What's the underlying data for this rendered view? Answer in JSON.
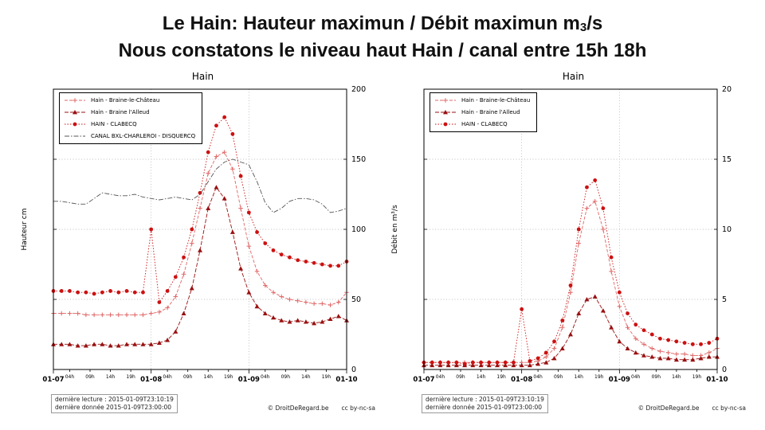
{
  "header": {
    "title_main": "Le Hain: Hauteur maximun  / Débit maximun m",
    "title_sub": "3",
    "title_end": "/s",
    "subtitle": "Nous constatons le niveau haut Hain / canal entre 15h 18h"
  },
  "footer": {
    "lecture": "dernière lecture : 2015-01-09T23:10:19",
    "donnee": "dernière donnée  2015-01-09T23:00:00",
    "copyright": "© DroitDeRegard.be",
    "license": "cc by-nc-sa"
  },
  "chart_data": [
    {
      "type": "line",
      "title": "Hain",
      "ylabel": "Hauteur cm",
      "ylim": [
        0,
        200
      ],
      "yticks": [
        0,
        50,
        100,
        150,
        200
      ],
      "xlim": [
        0,
        72
      ],
      "xticks": [
        {
          "pos": 0,
          "label": "01-07",
          "major": true
        },
        {
          "pos": 4,
          "label": "04h"
        },
        {
          "pos": 9,
          "label": "09h"
        },
        {
          "pos": 14,
          "label": "14h"
        },
        {
          "pos": 19,
          "label": "19h"
        },
        {
          "pos": 24,
          "label": "01-08",
          "major": true
        },
        {
          "pos": 28,
          "label": "04h"
        },
        {
          "pos": 33,
          "label": "09h"
        },
        {
          "pos": 38,
          "label": "14h"
        },
        {
          "pos": 43,
          "label": "19h"
        },
        {
          "pos": 48,
          "label": "01-09",
          "major": true
        },
        {
          "pos": 52,
          "label": "04h"
        },
        {
          "pos": 57,
          "label": "09h"
        },
        {
          "pos": 62,
          "label": "14h"
        },
        {
          "pos": 67,
          "label": "19h"
        },
        {
          "pos": 72,
          "label": "01-10",
          "major": true
        }
      ],
      "x": [
        0,
        2,
        4,
        6,
        8,
        10,
        12,
        14,
        16,
        18,
        20,
        22,
        24,
        26,
        28,
        30,
        32,
        34,
        36,
        38,
        40,
        42,
        44,
        46,
        48,
        50,
        52,
        54,
        56,
        58,
        60,
        62,
        64,
        66,
        68,
        70,
        72
      ],
      "series": [
        {
          "name": "Hain - Braine-le-Château",
          "color": "#e06666",
          "marker": "plus",
          "dash": "4 2",
          "values": [
            40,
            40,
            40,
            40,
            39,
            39,
            39,
            39,
            39,
            39,
            39,
            39,
            40,
            41,
            44,
            52,
            68,
            90,
            115,
            140,
            152,
            155,
            143,
            115,
            88,
            70,
            60,
            55,
            52,
            50,
            49,
            48,
            47,
            47,
            46,
            48,
            55
          ]
        },
        {
          "name": "Hain - Braine l'Alleud",
          "color": "#991111",
          "marker": "triangle",
          "dash": "5 2",
          "values": [
            18,
            18,
            18,
            17,
            17,
            18,
            18,
            17,
            17,
            18,
            18,
            18,
            18,
            19,
            21,
            27,
            40,
            58,
            85,
            115,
            130,
            122,
            98,
            72,
            55,
            45,
            40,
            37,
            35,
            34,
            35,
            34,
            33,
            34,
            36,
            38,
            35
          ]
        },
        {
          "name": "HAIN - CLABECQ",
          "color": "#cc1111",
          "marker": "circle",
          "dash": "1.5 2",
          "values": [
            56,
            56,
            56,
            55,
            55,
            54,
            55,
            56,
            55,
            56,
            55,
            55,
            100,
            48,
            56,
            66,
            80,
            100,
            126,
            155,
            174,
            180,
            168,
            138,
            112,
            98,
            90,
            85,
            82,
            80,
            78,
            77,
            76,
            75,
            74,
            74,
            77
          ]
        },
        {
          "name": "CANAL BXL-CHARLEROI - DISQUERCQ",
          "color": "#555555",
          "marker": "none",
          "dash": "6 2 1.5 2",
          "values": [
            120,
            120,
            119,
            118,
            118,
            122,
            126,
            125,
            124,
            124,
            125,
            123,
            122,
            121,
            122,
            123,
            122,
            121,
            125,
            134,
            143,
            148,
            150,
            148,
            146,
            134,
            119,
            112,
            115,
            120,
            122,
            122,
            121,
            118,
            112,
            113,
            115
          ]
        }
      ]
    },
    {
      "type": "line",
      "title": "Hain",
      "ylabel": "Débit en m³/s",
      "ylim": [
        0,
        20
      ],
      "yticks": [
        0,
        5,
        10,
        15,
        20
      ],
      "xlim": [
        0,
        72
      ],
      "xticks": [
        {
          "pos": 0,
          "label": "01-07",
          "major": true
        },
        {
          "pos": 4,
          "label": "04h"
        },
        {
          "pos": 9,
          "label": "09h"
        },
        {
          "pos": 14,
          "label": "14h"
        },
        {
          "pos": 19,
          "label": "19h"
        },
        {
          "pos": 24,
          "label": "01-08",
          "major": true
        },
        {
          "pos": 28,
          "label": "04h"
        },
        {
          "pos": 33,
          "label": "09h"
        },
        {
          "pos": 38,
          "label": "14h"
        },
        {
          "pos": 43,
          "label": "19h"
        },
        {
          "pos": 48,
          "label": "01-09",
          "major": true
        },
        {
          "pos": 52,
          "label": "04h"
        },
        {
          "pos": 57,
          "label": "09h"
        },
        {
          "pos": 62,
          "label": "14h"
        },
        {
          "pos": 67,
          "label": "19h"
        },
        {
          "pos": 72,
          "label": "01-10",
          "major": true
        }
      ],
      "x": [
        0,
        2,
        4,
        6,
        8,
        10,
        12,
        14,
        16,
        18,
        20,
        22,
        24,
        26,
        28,
        30,
        32,
        34,
        36,
        38,
        40,
        42,
        44,
        46,
        48,
        50,
        52,
        54,
        56,
        58,
        60,
        62,
        64,
        66,
        68,
        70,
        72
      ],
      "series": [
        {
          "name": "Hain - Braine-le-Château",
          "color": "#e06666",
          "marker": "plus",
          "dash": "4 2",
          "values": [
            0.5,
            0.5,
            0.5,
            0.5,
            0.5,
            0.5,
            0.5,
            0.5,
            0.5,
            0.5,
            0.5,
            0.5,
            0.5,
            0.5,
            0.6,
            0.9,
            1.5,
            3.0,
            5.5,
            9.0,
            11.5,
            12.0,
            10.0,
            7.0,
            4.5,
            3.0,
            2.2,
            1.8,
            1.5,
            1.3,
            1.2,
            1.1,
            1.1,
            1.0,
            1.0,
            1.2,
            1.5
          ]
        },
        {
          "name": "Hain - Braine l'Alleud",
          "color": "#991111",
          "marker": "triangle",
          "dash": "5 2",
          "values": [
            0.3,
            0.3,
            0.3,
            0.3,
            0.3,
            0.3,
            0.3,
            0.3,
            0.3,
            0.3,
            0.3,
            0.3,
            0.3,
            0.3,
            0.4,
            0.5,
            0.8,
            1.5,
            2.5,
            4.0,
            5.0,
            5.2,
            4.2,
            3.0,
            2.0,
            1.5,
            1.2,
            1.0,
            0.9,
            0.8,
            0.8,
            0.7,
            0.7,
            0.7,
            0.8,
            0.9,
            0.9
          ]
        },
        {
          "name": "HAIN - CLABECQ",
          "color": "#cc1111",
          "marker": "circle",
          "dash": "1.5 2",
          "values": [
            0.5,
            0.5,
            0.5,
            0.5,
            0.5,
            0.4,
            0.5,
            0.5,
            0.5,
            0.5,
            0.5,
            0.5,
            4.3,
            0.6,
            0.8,
            1.2,
            2.0,
            3.5,
            6.0,
            10.0,
            13.0,
            13.5,
            11.5,
            8.0,
            5.5,
            4.0,
            3.2,
            2.8,
            2.5,
            2.2,
            2.1,
            2.0,
            1.9,
            1.8,
            1.8,
            1.9,
            2.2
          ]
        }
      ]
    }
  ]
}
